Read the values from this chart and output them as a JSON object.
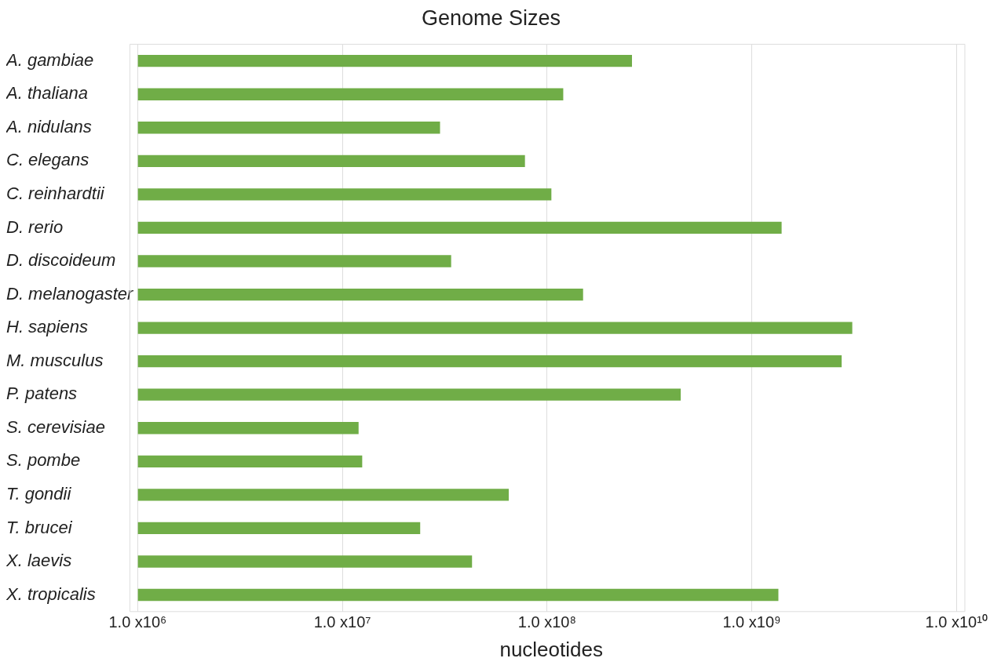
{
  "chart_data": {
    "type": "bar",
    "orientation": "horizontal",
    "title": "Genome Sizes",
    "xlabel": "nucleotides",
    "categories": [
      "A. gambiae",
      "A. thaliana",
      "A. nidulans",
      "C. elegans",
      "C. reinhardtii",
      "D. rerio",
      "D. discoideum",
      "D. melanogaster",
      "H. sapiens",
      "M. musculus",
      "P. patens",
      "S. cerevisiae",
      "S. pombe",
      "T. gondii",
      "T. brucei",
      "X. laevis",
      "X. tropicalis"
    ],
    "values": [
      260000000.0,
      120000000.0,
      30000000.0,
      78000000.0,
      105000000.0,
      1400000000.0,
      34000000.0,
      150000000.0,
      3100000000.0,
      2750000000.0,
      450000000.0,
      12000000.0,
      12500000.0,
      65000000.0,
      24000000.0,
      43000000.0,
      1350000000.0
    ],
    "color": "#70ad47",
    "log": "x",
    "xlim": [
      1000000.0,
      11000000000.0
    ],
    "xticks": [
      {
        "value": 1000000.0,
        "label": "1.0 x10⁶"
      },
      {
        "value": 10000000.0,
        "label": "1.0 x10⁷"
      },
      {
        "value": 100000000.0,
        "label": "1.0 x10⁸"
      },
      {
        "value": 1000000000.0,
        "label": "1.0 x10⁹"
      },
      {
        "value": 10000000000.0,
        "label": "1.0 x10¹⁰"
      }
    ],
    "grid": "x",
    "legend": false
  }
}
